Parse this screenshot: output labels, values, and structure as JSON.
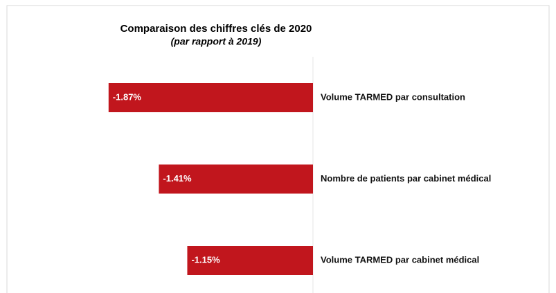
{
  "chart_data": {
    "type": "hbar",
    "title": "Comparaison des chiffres clés de 2020",
    "subtitle": "(par rapport à 2019)",
    "categories": [
      "Volume TARMED par consultation",
      "Nombre de patients par cabinet médical",
      "Volume TARMED par cabinet médical"
    ],
    "values": [
      -1.87,
      -1.41,
      -1.15
    ],
    "value_labels": [
      "-1.87%",
      "-1.41%",
      "-1.15%"
    ],
    "color": "#c1161d",
    "xlim": [
      -2.8,
      0
    ]
  }
}
